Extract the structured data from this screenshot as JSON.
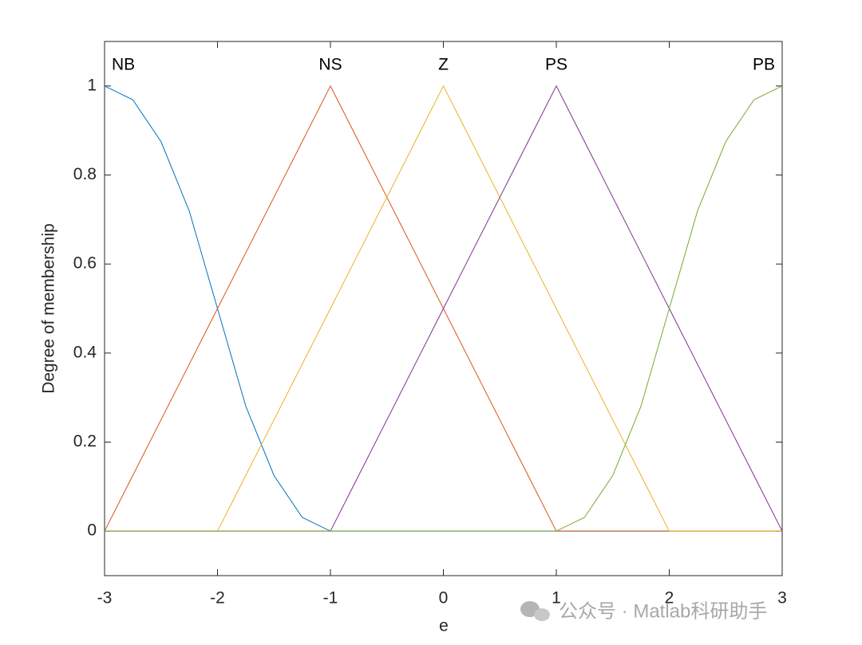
{
  "chart_data": {
    "type": "line",
    "x_label": "e",
    "y_label": "Degree of membership",
    "x": [
      -3,
      -2.75,
      -2.5,
      -2.25,
      -2,
      -1.75,
      -1.5,
      -1.25,
      -1,
      -0.75,
      -0.5,
      -0.25,
      0,
      0.25,
      0.5,
      0.75,
      1,
      1.25,
      1.5,
      1.75,
      2,
      2.25,
      2.5,
      2.75,
      3
    ],
    "series": [
      {
        "name": "NB",
        "color": "#0072BD",
        "values": [
          1,
          0.969,
          0.875,
          0.719,
          0.5,
          0.281,
          0.125,
          0.031,
          0,
          0,
          0,
          0,
          0,
          0,
          0,
          0,
          0,
          0,
          0,
          0,
          0,
          0,
          0,
          0,
          0
        ]
      },
      {
        "name": "NS",
        "color": "#D95319",
        "values": [
          0,
          0.125,
          0.25,
          0.375,
          0.5,
          0.625,
          0.75,
          0.875,
          1,
          0.875,
          0.75,
          0.625,
          0.5,
          0.375,
          0.25,
          0.125,
          0,
          0,
          0,
          0,
          0,
          0,
          0,
          0,
          0
        ]
      },
      {
        "name": "Z",
        "color": "#EDB120",
        "values": [
          0,
          0,
          0,
          0,
          0,
          0.125,
          0.25,
          0.375,
          0.5,
          0.625,
          0.75,
          0.875,
          1,
          0.875,
          0.75,
          0.625,
          0.5,
          0.375,
          0.25,
          0.125,
          0,
          0,
          0,
          0,
          0
        ]
      },
      {
        "name": "PS",
        "color": "#7E2F8E",
        "values": [
          0,
          0,
          0,
          0,
          0,
          0,
          0,
          0,
          0,
          0.125,
          0.25,
          0.375,
          0.5,
          0.625,
          0.75,
          0.875,
          1,
          0.875,
          0.75,
          0.625,
          0.5,
          0.375,
          0.25,
          0.125,
          0
        ]
      },
      {
        "name": "PB",
        "color": "#77AC30",
        "values": [
          0,
          0,
          0,
          0,
          0,
          0,
          0,
          0,
          0,
          0,
          0,
          0,
          0,
          0,
          0,
          0,
          0,
          0.031,
          0.125,
          0.281,
          0.5,
          0.719,
          0.875,
          0.969,
          1
        ]
      }
    ],
    "xlim": [
      -3,
      3
    ],
    "xticks": [
      -3,
      -2,
      -1,
      0,
      1,
      2,
      3
    ],
    "ylim": [
      -0.1,
      1.1
    ],
    "yticks": [
      0,
      0.2,
      0.4,
      0.6,
      0.8,
      1
    ],
    "grid": false
  },
  "watermark": "公众号 · Matlab科研助手"
}
